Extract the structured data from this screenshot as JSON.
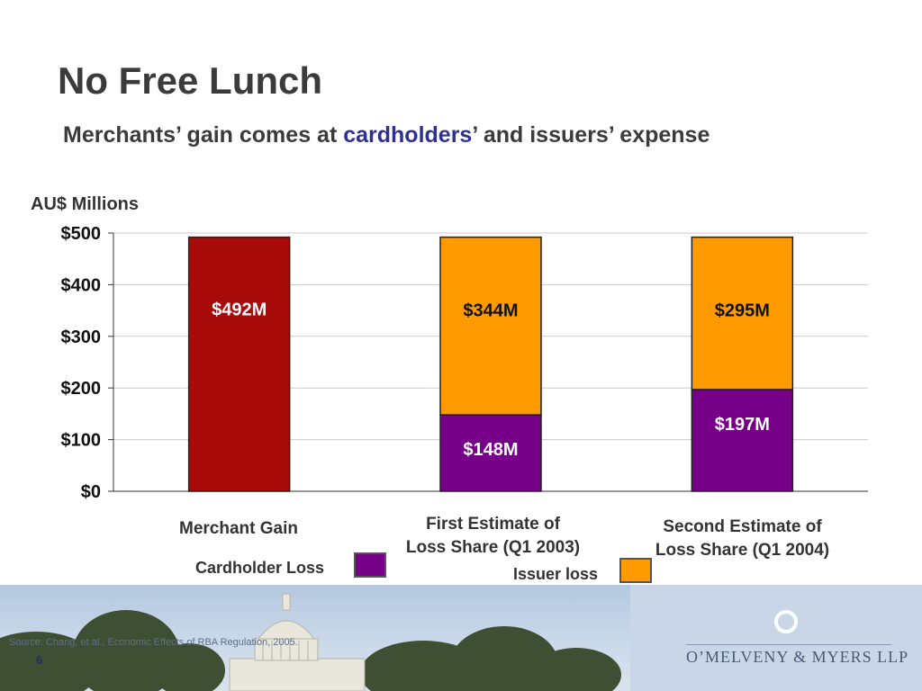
{
  "slide": {
    "title": "No Free Lunch",
    "subtitle_before": "Merchants’ gain comes at ",
    "subtitle_accent": "cardholders",
    "subtitle_after": "’ and issuers’ expense",
    "page_number": "6",
    "source": "Source: Chang, et al., Economic Effects of  RBA Regulation, 2005.",
    "firm_name": "O’MELVENY & MYERS LLP"
  },
  "colors": {
    "merchant_gain": "#a80a0a",
    "cardholder_loss": "#760088",
    "issuer_loss": "#ff9a00",
    "subtitle_accent": "#2e3192"
  },
  "chart_data": {
    "type": "bar",
    "stacked": true,
    "ylabel": "AU$ Millions",
    "ylim": [
      0,
      500
    ],
    "yticks": [
      0,
      100,
      200,
      300,
      400,
      500
    ],
    "ytick_labels": [
      "$0",
      "$100",
      "$200",
      "$300",
      "$400",
      "$500"
    ],
    "grid": true,
    "categories": [
      [
        "Merchant Gain"
      ],
      [
        "First Estimate of",
        "Loss Share (Q1 2003)"
      ],
      [
        "Second Estimate of",
        "Loss Share (Q1 2004)"
      ]
    ],
    "series": [
      {
        "name": "",
        "color": "#a80a0a",
        "values": [
          492,
          0,
          0
        ],
        "labels": [
          "$492M",
          "",
          ""
        ]
      },
      {
        "name": "Cardholder Loss",
        "color": "#760088",
        "values": [
          0,
          148,
          197
        ],
        "labels": [
          "",
          "$148M",
          "$197M"
        ]
      },
      {
        "name": "Issuer loss",
        "color": "#ff9a00",
        "values": [
          0,
          344,
          295
        ],
        "labels": [
          "",
          "$344M",
          "$295M"
        ]
      }
    ],
    "legend": {
      "placement": "bottom"
    }
  }
}
